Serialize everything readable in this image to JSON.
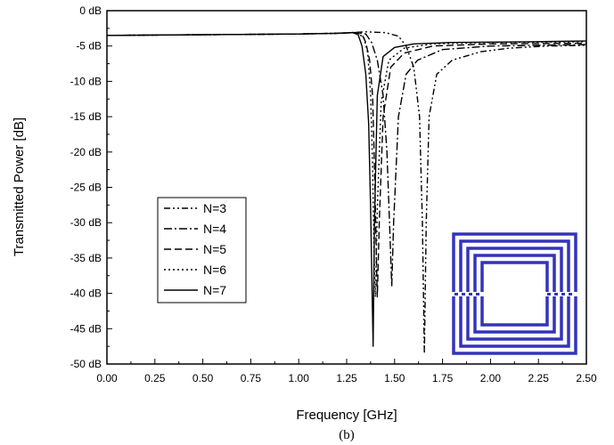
{
  "chart_data": {
    "type": "line",
    "title": "",
    "caption": "(b)",
    "xlabel": "Frequency [GHz]",
    "ylabel": "Transmitted Power [dB]",
    "xlim": [
      0,
      2.5
    ],
    "ylim": [
      -50,
      0
    ],
    "x_ticks": [
      "0.00",
      "0.25",
      "0.50",
      "0.75",
      "1.00",
      "1.25",
      "1.50",
      "1.75",
      "2.00",
      "2.25",
      "2.50"
    ],
    "x_tick_values": [
      0,
      0.25,
      0.5,
      0.75,
      1.0,
      1.25,
      1.5,
      1.75,
      2.0,
      2.25,
      2.5
    ],
    "y_ticks": [
      "0 dB",
      "-5 dB",
      "-10 dB",
      "-15 dB",
      "-20 dB",
      "-25 dB",
      "-30 dB",
      "-35 dB",
      "-40 dB",
      "-45 dB",
      "-50 dB"
    ],
    "y_tick_values": [
      0,
      -5,
      -10,
      -15,
      -20,
      -25,
      -30,
      -35,
      -40,
      -45,
      -50
    ],
    "grid": false,
    "legend_position": "center-left",
    "inset": "square-spiral-resonator",
    "inset_color": "#3333bb",
    "series": [
      {
        "name": "N=3",
        "dash": "dash-dot-dot",
        "points": [
          [
            0,
            -3.5
          ],
          [
            0.5,
            -3.4
          ],
          [
            1.0,
            -3.3
          ],
          [
            1.2,
            -3.2
          ],
          [
            1.35,
            -3.0
          ],
          [
            1.45,
            -3.1
          ],
          [
            1.52,
            -3.6
          ],
          [
            1.56,
            -5.0
          ],
          [
            1.6,
            -8.0
          ],
          [
            1.63,
            -15.0
          ],
          [
            1.645,
            -30.0
          ],
          [
            1.655,
            -48.5
          ],
          [
            1.665,
            -30.0
          ],
          [
            1.68,
            -15.0
          ],
          [
            1.72,
            -9.0
          ],
          [
            1.8,
            -7.0
          ],
          [
            1.95,
            -5.8
          ],
          [
            2.1,
            -5.3
          ],
          [
            2.3,
            -5.0
          ],
          [
            2.5,
            -4.9
          ]
        ]
      },
      {
        "name": "N=4",
        "dash": "dash-dot",
        "points": [
          [
            0,
            -3.5
          ],
          [
            0.5,
            -3.4
          ],
          [
            1.0,
            -3.3
          ],
          [
            1.2,
            -3.2
          ],
          [
            1.3,
            -3.1
          ],
          [
            1.35,
            -3.3
          ],
          [
            1.38,
            -4.5
          ],
          [
            1.41,
            -7.0
          ],
          [
            1.44,
            -12.0
          ],
          [
            1.46,
            -20.0
          ],
          [
            1.475,
            -31.0
          ],
          [
            1.485,
            -39.0
          ],
          [
            1.495,
            -30.0
          ],
          [
            1.52,
            -15.0
          ],
          [
            1.56,
            -9.0
          ],
          [
            1.62,
            -7.0
          ],
          [
            1.75,
            -5.5
          ],
          [
            2.0,
            -5.0
          ],
          [
            2.5,
            -4.8
          ]
        ]
      },
      {
        "name": "N=5",
        "dash": "dash",
        "points": [
          [
            0,
            -3.5
          ],
          [
            0.5,
            -3.4
          ],
          [
            1.0,
            -3.3
          ],
          [
            1.2,
            -3.2
          ],
          [
            1.3,
            -3.1
          ],
          [
            1.33,
            -3.4
          ],
          [
            1.35,
            -4.5
          ],
          [
            1.37,
            -7.0
          ],
          [
            1.385,
            -12.0
          ],
          [
            1.395,
            -22.0
          ],
          [
            1.405,
            -35.0
          ],
          [
            1.41,
            -40.5
          ],
          [
            1.42,
            -30.0
          ],
          [
            1.44,
            -15.0
          ],
          [
            1.48,
            -8.0
          ],
          [
            1.55,
            -6.0
          ],
          [
            1.7,
            -5.0
          ],
          [
            2.0,
            -4.7
          ],
          [
            2.5,
            -4.6
          ]
        ]
      },
      {
        "name": "N=6",
        "dash": "dot",
        "points": [
          [
            0,
            -3.5
          ],
          [
            0.5,
            -3.4
          ],
          [
            1.0,
            -3.3
          ],
          [
            1.2,
            -3.2
          ],
          [
            1.3,
            -3.1
          ],
          [
            1.34,
            -3.8
          ],
          [
            1.36,
            -6.0
          ],
          [
            1.375,
            -12.0
          ],
          [
            1.385,
            -22.0
          ],
          [
            1.393,
            -35.0
          ],
          [
            1.4,
            -40.5
          ],
          [
            1.41,
            -28.0
          ],
          [
            1.43,
            -13.0
          ],
          [
            1.47,
            -7.0
          ],
          [
            1.55,
            -5.3
          ],
          [
            1.7,
            -4.7
          ],
          [
            2.0,
            -4.5
          ],
          [
            2.5,
            -4.4
          ]
        ]
      },
      {
        "name": "N=7",
        "dash": "solid",
        "points": [
          [
            0,
            -3.5
          ],
          [
            0.5,
            -3.4
          ],
          [
            1.0,
            -3.3
          ],
          [
            1.2,
            -3.2
          ],
          [
            1.28,
            -3.1
          ],
          [
            1.31,
            -3.4
          ],
          [
            1.33,
            -5.0
          ],
          [
            1.35,
            -9.0
          ],
          [
            1.365,
            -16.0
          ],
          [
            1.375,
            -28.0
          ],
          [
            1.383,
            -40.0
          ],
          [
            1.388,
            -47.5
          ],
          [
            1.395,
            -30.0
          ],
          [
            1.41,
            -12.0
          ],
          [
            1.44,
            -6.5
          ],
          [
            1.5,
            -5.2
          ],
          [
            1.6,
            -4.7
          ],
          [
            1.8,
            -4.5
          ],
          [
            2.2,
            -4.4
          ],
          [
            2.5,
            -4.3
          ]
        ]
      }
    ]
  }
}
